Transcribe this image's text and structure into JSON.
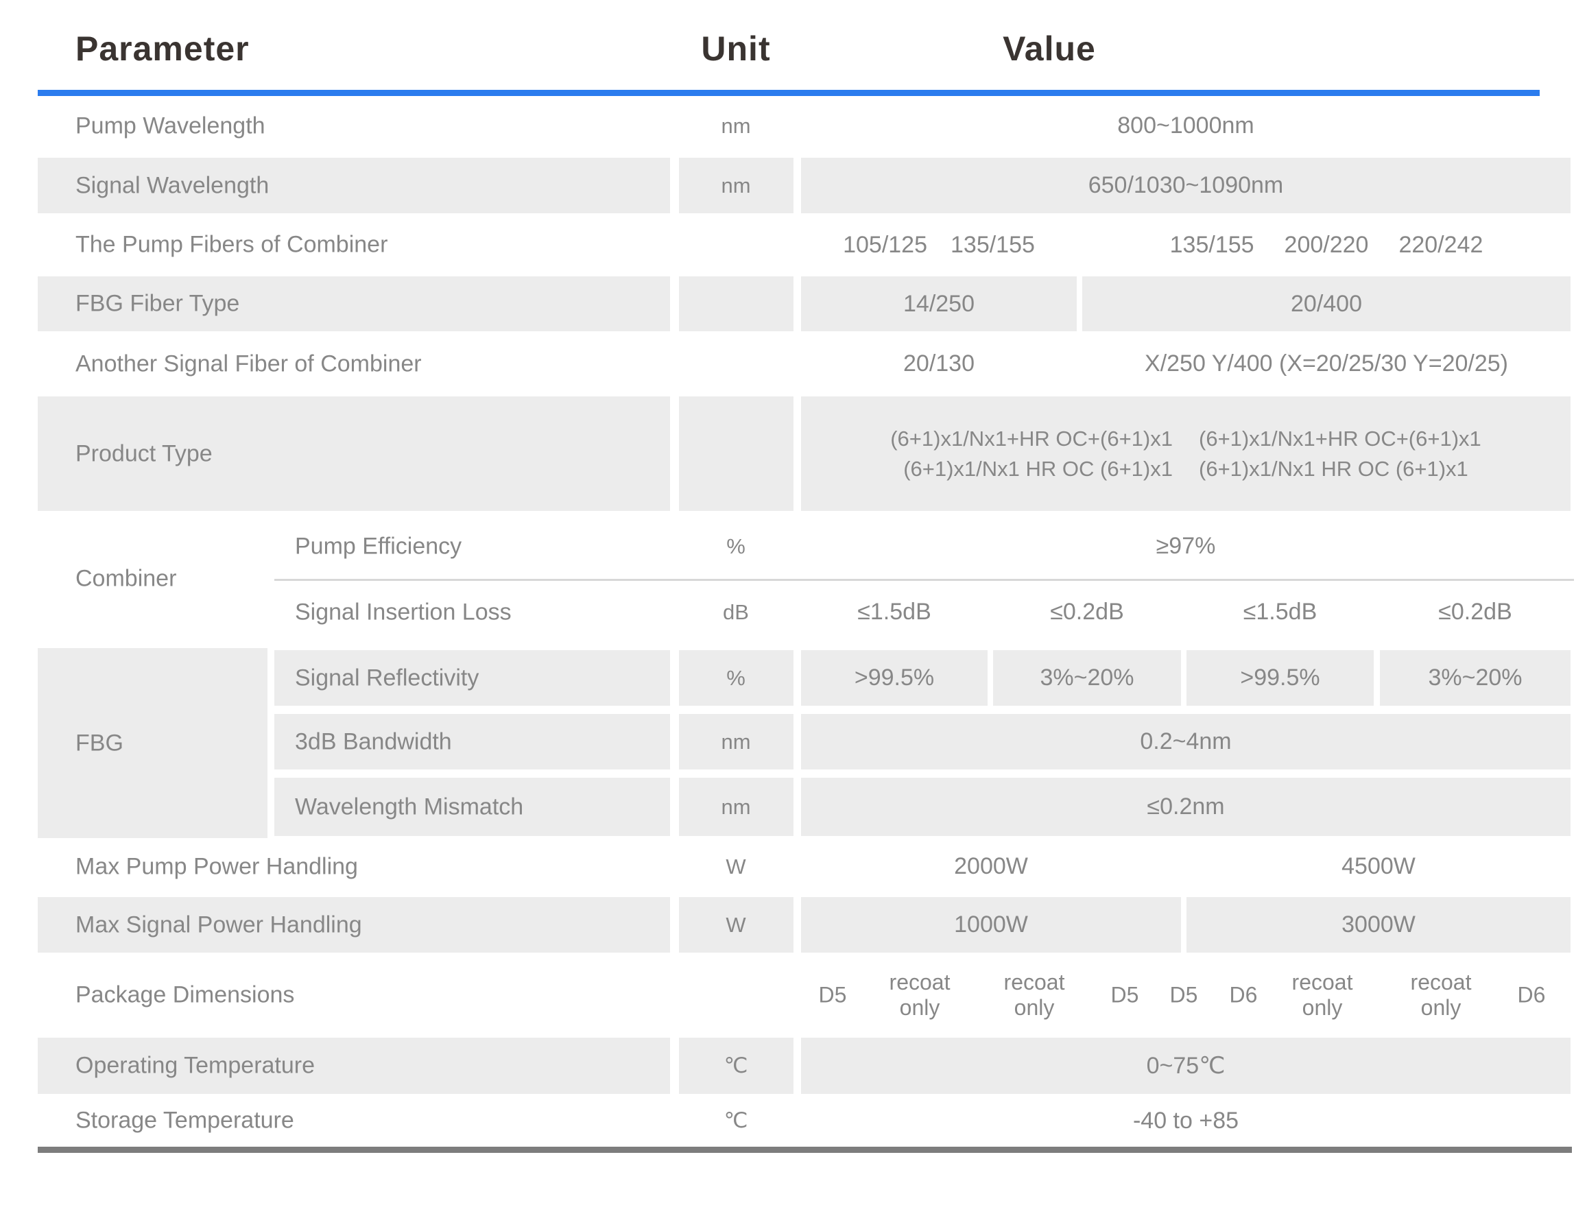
{
  "header": {
    "parameter": "Parameter",
    "unit": "Unit",
    "value": "Value"
  },
  "colors": {
    "accent_line": "#2b7cee",
    "shaded_cell": "#ececec",
    "divider": "#d8d8d8",
    "bottom_rule": "#7d7d7d",
    "header_text": "#3a3431",
    "body_text": "#878787"
  },
  "table": {
    "rows": [
      {
        "name": "pump-wavelength",
        "shaded": false,
        "param": "Pump Wavelength",
        "unit": "nm",
        "values": [
          {
            "span": "full",
            "text": "800~1000nm"
          }
        ]
      },
      {
        "name": "signal-wavelength",
        "shaded": true,
        "param": "Signal Wavelength",
        "unit": "nm",
        "values": [
          {
            "span": "full",
            "text": "650/1030~1090nm"
          }
        ]
      },
      {
        "name": "pump-fibers-of-combiner",
        "shaded": false,
        "param": "The Pump Fibers of Combiner",
        "unit": "",
        "values": [
          {
            "span": "left-narrow",
            "tokens": [
              "105/125",
              "135/155"
            ]
          },
          {
            "span": "right-wide",
            "tokens": [
              "135/155",
              "200/220",
              "220/242"
            ]
          }
        ]
      },
      {
        "name": "fbg-fiber-type",
        "shaded": true,
        "param": "FBG Fiber Type",
        "unit": "",
        "values": [
          {
            "span": "left-narrow",
            "text": "14/250"
          },
          {
            "span": "right-wide",
            "text": "20/400"
          }
        ]
      },
      {
        "name": "another-signal-fiber",
        "shaded": false,
        "param": "Another Signal Fiber of Combiner",
        "unit": "",
        "values": [
          {
            "span": "left-narrow",
            "text": "20/130"
          },
          {
            "span": "right-wide",
            "text": "X/250 Y/400 (X=20/25/30 Y=20/25)"
          }
        ]
      },
      {
        "name": "product-type",
        "shaded": true,
        "param": "Product Type",
        "unit": "",
        "values": [
          {
            "span": "full",
            "lines": [
              [
                "(6+1)x1/Nx1+HR OC+(6+1)x1",
                "(6+1)x1/Nx1+HR OC+(6+1)x1"
              ],
              [
                "(6+1)x1/Nx1 HR OC (6+1)x1",
                "(6+1)x1/Nx1 HR OC (6+1)x1"
              ]
            ]
          }
        ]
      },
      {
        "name": "combiner-group",
        "type": "group",
        "group": "Combiner",
        "shaded": false,
        "subrows": [
          {
            "name": "pump-efficiency",
            "param": "Pump Efficiency",
            "unit": "%",
            "values": [
              {
                "span": "full",
                "text": "≥97%"
              }
            ]
          },
          {
            "name": "signal-insertion-loss",
            "param": "Signal Insertion Loss",
            "unit": "dB",
            "values": [
              {
                "span": "q1",
                "text": "≤1.5dB"
              },
              {
                "span": "q2",
                "text": "≤0.2dB"
              },
              {
                "span": "q3",
                "text": "≤1.5dB"
              },
              {
                "span": "q4",
                "text": "≤0.2dB"
              }
            ]
          }
        ]
      },
      {
        "name": "fbg-group",
        "type": "group",
        "group": "FBG",
        "shaded": true,
        "subrows": [
          {
            "name": "signal-reflectivity",
            "param": "Signal Reflectivity",
            "unit": "%",
            "values": [
              {
                "span": "q1",
                "text": ">99.5%"
              },
              {
                "span": "q2",
                "text": "3%~20%"
              },
              {
                "span": "q3",
                "text": ">99.5%"
              },
              {
                "span": "q4",
                "text": "3%~20%"
              }
            ]
          },
          {
            "name": "bandwidth-3db",
            "param": "3dB Bandwidth",
            "unit": "nm",
            "values": [
              {
                "span": "full",
                "text": "0.2~4nm"
              }
            ]
          },
          {
            "name": "wavelength-mismatch",
            "param": "Wavelength Mismatch",
            "unit": "nm",
            "values": [
              {
                "span": "full",
                "text": "≤0.2nm"
              }
            ]
          }
        ]
      },
      {
        "name": "max-pump-power",
        "shaded": false,
        "param": "Max Pump Power Handling",
        "unit": "W",
        "values": [
          {
            "span": "left-half",
            "text": "2000W"
          },
          {
            "span": "right-half",
            "text": "4500W"
          }
        ]
      },
      {
        "name": "max-signal-power",
        "shaded": true,
        "param": "Max Signal Power Handling",
        "unit": "W",
        "values": [
          {
            "span": "left-half",
            "text": "1000W"
          },
          {
            "span": "right-half",
            "text": "3000W"
          }
        ]
      },
      {
        "name": "package-dimensions",
        "shaded": false,
        "param": "Package Dimensions",
        "unit": "",
        "values": [
          {
            "span": "tokens",
            "tokens": [
              "D5",
              "recoat only",
              "recoat only",
              "D5",
              "D5",
              "D6",
              "recoat only",
              "recoat only",
              "D6"
            ]
          }
        ]
      },
      {
        "name": "operating-temperature",
        "shaded": true,
        "param": "Operating Temperature",
        "unit": "℃",
        "values": [
          {
            "span": "full",
            "text": "0~75℃"
          }
        ]
      },
      {
        "name": "storage-temperature",
        "shaded": false,
        "param": "Storage Temperature",
        "unit": "℃",
        "values": [
          {
            "span": "full",
            "text": "-40 to +85"
          }
        ]
      }
    ]
  }
}
